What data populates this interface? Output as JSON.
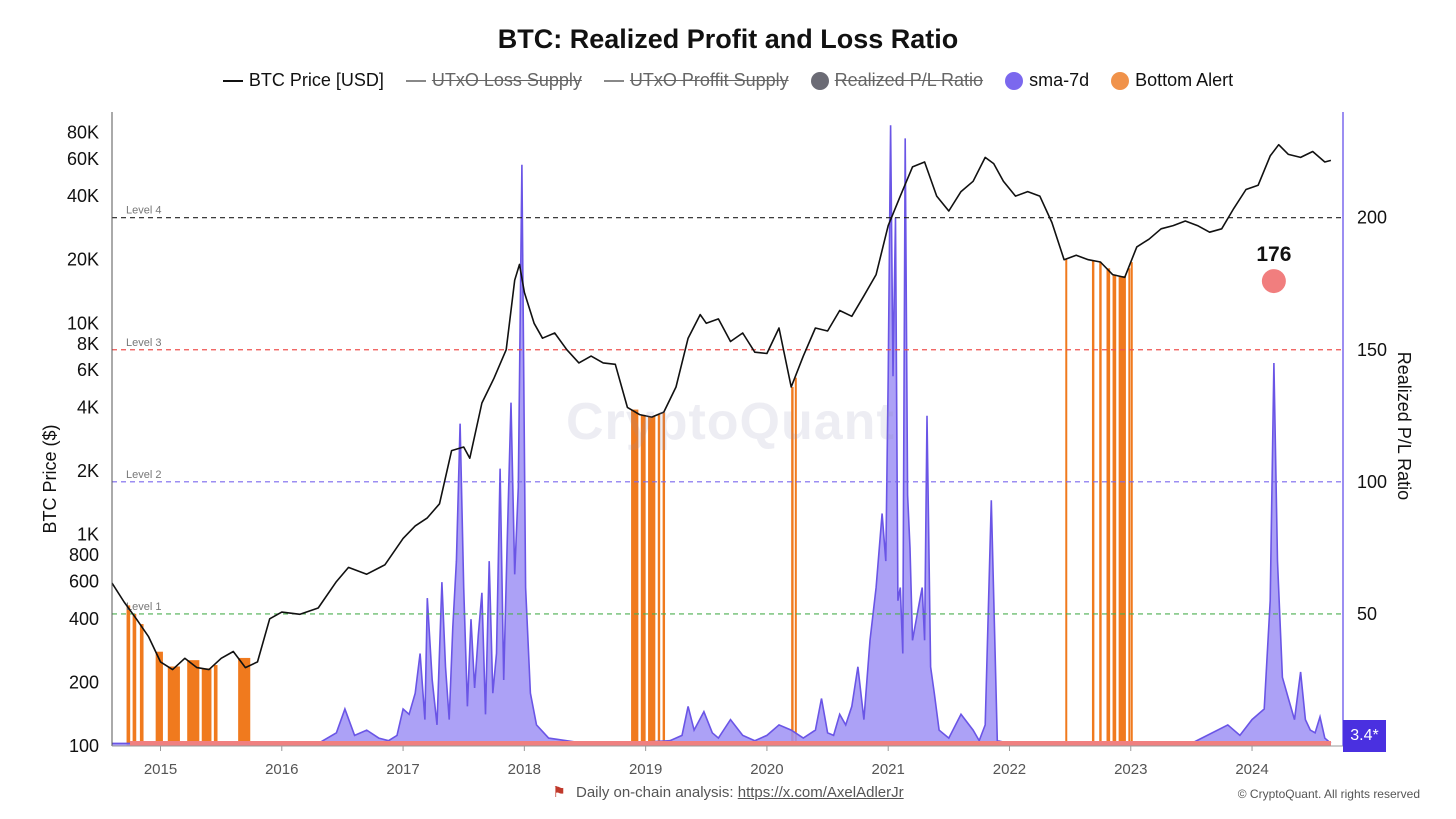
{
  "title": "BTC: Realized Profit and Loss Ratio",
  "legend": [
    {
      "label": "BTC Price [USD]",
      "kind": "line",
      "color": "#111111",
      "enabled": true
    },
    {
      "label": "UTxO Loss Supply",
      "kind": "line",
      "color": "#888888",
      "enabled": false
    },
    {
      "label": "UTxO Proffit Supply",
      "kind": "line",
      "color": "#888888",
      "enabled": false
    },
    {
      "label": "Realized P/L Ratio",
      "kind": "dot",
      "color": "#6b6b75",
      "enabled": false
    },
    {
      "label": "sma-7d",
      "kind": "dot",
      "color": "#7b68ee",
      "enabled": true
    },
    {
      "label": "Bottom Alert",
      "kind": "dot",
      "color": "#f0924a",
      "enabled": true
    }
  ],
  "watermark": "CryptoQuant",
  "footer": {
    "prefix": "Daily on-chain analysis:",
    "link": "https://x.com/AxelAdlerJr"
  },
  "copyright": "© CryptoQuant. All rights reserved",
  "badge": "3.4*",
  "annotation": {
    "label": "176",
    "x": 2024.18,
    "y": 176,
    "color": "#f07070"
  },
  "colors": {
    "price": "#111111",
    "sma": "#6a55e6",
    "smaFill": "#9d90f5",
    "alert": "#f07a1e",
    "pl": "#f08080"
  },
  "chart_data": {
    "type": "line",
    "ylabel": "BTC Price ($)",
    "y2label": "Realized P/L Ratio",
    "yscale": "log",
    "ylim": [
      100,
      100000
    ],
    "y2lim": [
      0,
      240
    ],
    "xlim": [
      2014.6,
      2024.75
    ],
    "yticks": [
      "80K",
      "60K",
      "40K",
      "20K",
      "10K",
      "8K",
      "6K",
      "4K",
      "2K",
      "1K",
      "800",
      "600",
      "400",
      "200",
      "100"
    ],
    "ytick_values": [
      80000,
      60000,
      40000,
      20000,
      10000,
      8000,
      6000,
      4000,
      2000,
      1000,
      800,
      600,
      400,
      200,
      100
    ],
    "y2ticks": [
      50,
      100,
      150,
      200
    ],
    "xticks": [
      "2015",
      "2016",
      "2017",
      "2018",
      "2019",
      "2020",
      "2021",
      "2022",
      "2023",
      "2024"
    ],
    "levels": [
      {
        "name": "Level 1",
        "value": 50,
        "color": "#4caf50"
      },
      {
        "name": "Level 2",
        "value": 100,
        "color": "#7b68ee"
      },
      {
        "name": "Level 3",
        "value": 150,
        "color": "#ef5350"
      },
      {
        "name": "Level 4",
        "value": 200,
        "color": "#222222"
      }
    ],
    "series": [
      {
        "name": "BTC Price [USD]",
        "axis": "left",
        "x": [
          2014.6,
          2014.7,
          2014.8,
          2014.9,
          2015.0,
          2015.1,
          2015.2,
          2015.3,
          2015.4,
          2015.5,
          2015.6,
          2015.7,
          2015.8,
          2015.9,
          2016.0,
          2016.15,
          2016.3,
          2016.45,
          2016.55,
          2016.7,
          2016.85,
          2017.0,
          2017.1,
          2017.2,
          2017.3,
          2017.4,
          2017.5,
          2017.55,
          2017.65,
          2017.75,
          2017.85,
          2017.92,
          2017.96,
          2018.0,
          2018.08,
          2018.15,
          2018.25,
          2018.35,
          2018.45,
          2018.55,
          2018.65,
          2018.75,
          2018.85,
          2018.95,
          2019.05,
          2019.15,
          2019.25,
          2019.35,
          2019.45,
          2019.5,
          2019.6,
          2019.7,
          2019.8,
          2019.9,
          2020.0,
          2020.1,
          2020.2,
          2020.3,
          2020.4,
          2020.5,
          2020.6,
          2020.7,
          2020.8,
          2020.9,
          2021.0,
          2021.1,
          2021.2,
          2021.3,
          2021.4,
          2021.5,
          2021.6,
          2021.7,
          2021.8,
          2021.87,
          2021.95,
          2022.05,
          2022.15,
          2022.25,
          2022.35,
          2022.45,
          2022.55,
          2022.65,
          2022.75,
          2022.85,
          2022.95,
          2023.05,
          2023.15,
          2023.25,
          2023.35,
          2023.45,
          2023.55,
          2023.65,
          2023.75,
          2023.85,
          2023.95,
          2024.05,
          2024.15,
          2024.22,
          2024.3,
          2024.4,
          2024.5,
          2024.6,
          2024.65
        ],
        "y": [
          590,
          480,
          400,
          330,
          250,
          230,
          260,
          235,
          230,
          260,
          280,
          235,
          250,
          400,
          430,
          420,
          450,
          600,
          700,
          650,
          720,
          960,
          1100,
          1200,
          1400,
          2500,
          2600,
          2300,
          4200,
          5500,
          7500,
          16000,
          19000,
          14000,
          10000,
          8500,
          9000,
          7500,
          6500,
          7000,
          6500,
          6400,
          4000,
          3700,
          3600,
          3800,
          5000,
          8500,
          11000,
          10000,
          10500,
          8200,
          9000,
          7300,
          7200,
          9500,
          5000,
          7000,
          9500,
          9200,
          11500,
          10800,
          13500,
          17000,
          29000,
          40000,
          55000,
          58000,
          40000,
          34000,
          42000,
          47000,
          61000,
          57000,
          47000,
          40000,
          42000,
          40000,
          30000,
          20000,
          21000,
          20000,
          19500,
          17000,
          16500,
          23000,
          25000,
          28000,
          29000,
          30500,
          29000,
          27000,
          28000,
          35000,
          43000,
          45000,
          62000,
          70000,
          63000,
          61000,
          65000,
          58000,
          59000
        ]
      },
      {
        "name": "sma-7d",
        "axis": "right",
        "x": [
          2014.6,
          2016.3,
          2016.45,
          2016.52,
          2016.6,
          2016.7,
          2016.8,
          2016.88,
          2016.95,
          2017.0,
          2017.05,
          2017.1,
          2017.14,
          2017.18,
          2017.2,
          2017.24,
          2017.28,
          2017.32,
          2017.35,
          2017.38,
          2017.41,
          2017.44,
          2017.47,
          2017.5,
          2017.53,
          2017.56,
          2017.59,
          2017.62,
          2017.65,
          2017.68,
          2017.71,
          2017.74,
          2017.77,
          2017.8,
          2017.83,
          2017.86,
          2017.89,
          2017.92,
          2017.95,
          2017.98,
          2018.01,
          2018.05,
          2018.1,
          2018.2,
          2018.5,
          2018.8,
          2019.2,
          2019.3,
          2019.35,
          2019.4,
          2019.48,
          2019.55,
          2019.6,
          2019.7,
          2019.8,
          2019.9,
          2020.0,
          2020.1,
          2020.2,
          2020.3,
          2020.4,
          2020.45,
          2020.5,
          2020.55,
          2020.6,
          2020.65,
          2020.7,
          2020.75,
          2020.8,
          2020.85,
          2020.9,
          2020.95,
          2020.98,
          2021.0,
          2021.02,
          2021.04,
          2021.06,
          2021.08,
          2021.1,
          2021.12,
          2021.14,
          2021.16,
          2021.18,
          2021.2,
          2021.24,
          2021.26,
          2021.28,
          2021.3,
          2021.32,
          2021.35,
          2021.38,
          2021.42,
          2021.5,
          2021.6,
          2021.7,
          2021.75,
          2021.8,
          2021.85,
          2021.9,
          2022.0,
          2022.5,
          2023.0,
          2023.5,
          2023.8,
          2023.9,
          2024.0,
          2024.1,
          2024.15,
          2024.18,
          2024.21,
          2024.25,
          2024.3,
          2024.35,
          2024.4,
          2024.44,
          2024.48,
          2024.52,
          2024.56,
          2024.6,
          2024.65
        ],
        "y": [
          1,
          1,
          5,
          14,
          4,
          6,
          3,
          2,
          4,
          14,
          12,
          20,
          35,
          10,
          56,
          25,
          8,
          62,
          30,
          10,
          45,
          70,
          122,
          60,
          15,
          48,
          22,
          42,
          58,
          12,
          70,
          20,
          35,
          105,
          25,
          80,
          130,
          65,
          98,
          220,
          60,
          20,
          8,
          3,
          1,
          1,
          2,
          4,
          15,
          6,
          13,
          5,
          3,
          10,
          4,
          2,
          4,
          8,
          6,
          3,
          6,
          18,
          5,
          4,
          12,
          8,
          15,
          30,
          10,
          40,
          60,
          88,
          70,
          140,
          235,
          140,
          200,
          55,
          60,
          35,
          230,
          95,
          75,
          40,
          50,
          55,
          60,
          40,
          125,
          30,
          20,
          6,
          3,
          12,
          6,
          2,
          8,
          93,
          2,
          1,
          1,
          1,
          1,
          8,
          4,
          10,
          14,
          55,
          145,
          70,
          26,
          18,
          10,
          28,
          10,
          6,
          5,
          11,
          3,
          1
        ]
      },
      {
        "name": "Bottom Alert",
        "axis": "right",
        "ranges": [
          [
            2014.72,
            2014.75
          ],
          [
            2014.77,
            2014.8
          ],
          [
            2014.83,
            2014.86
          ],
          [
            2014.96,
            2015.02
          ],
          [
            2015.06,
            2015.16
          ],
          [
            2015.22,
            2015.32
          ],
          [
            2015.34,
            2015.42
          ],
          [
            2015.44,
            2015.47
          ],
          [
            2015.64,
            2015.74
          ],
          [
            2018.88,
            2018.94
          ],
          [
            2018.96,
            2019.0
          ],
          [
            2019.02,
            2019.08
          ],
          [
            2019.1,
            2019.12
          ],
          [
            2019.14,
            2019.16
          ],
          [
            2020.2,
            2020.22
          ],
          [
            2020.23,
            2020.24
          ],
          [
            2022.46,
            2022.47
          ],
          [
            2022.68,
            2022.7
          ],
          [
            2022.74,
            2022.76
          ],
          [
            2022.8,
            2022.83
          ],
          [
            2022.85,
            2022.88
          ],
          [
            2022.9,
            2022.96
          ],
          [
            2022.98,
            2022.99
          ],
          [
            2023.0,
            2023.01
          ]
        ]
      }
    ]
  }
}
